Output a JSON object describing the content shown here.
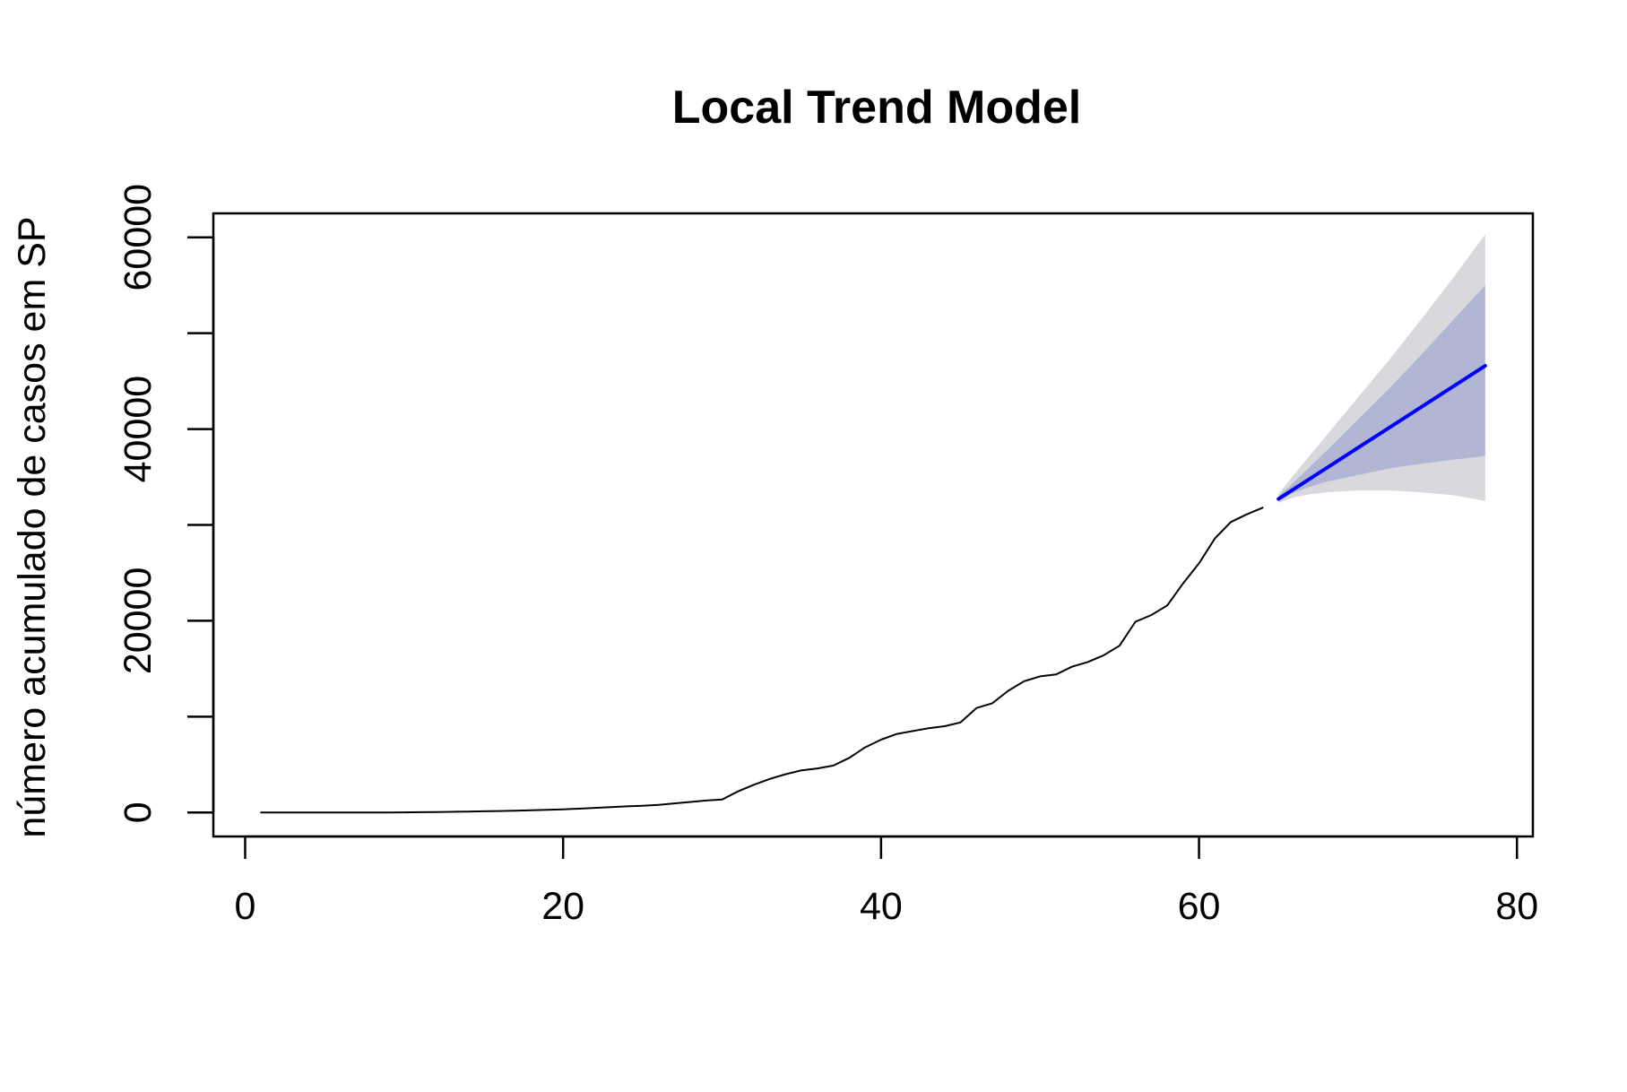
{
  "chart_data": {
    "type": "line",
    "title": "Local Trend Model",
    "xlabel": "",
    "ylabel": "número acumulado de casos em SP",
    "xlim": [
      -2,
      81
    ],
    "ylim": [
      -2500,
      62500
    ],
    "x_ticks": [
      0,
      20,
      40,
      60,
      80
    ],
    "x_tick_labels": [
      "0",
      "20",
      "40",
      "60",
      "80"
    ],
    "y_ticks": [
      0,
      10000,
      20000,
      30000,
      40000,
      50000,
      60000
    ],
    "y_tick_labels": [
      "0",
      "",
      "20000",
      "",
      "40000",
      "",
      "60000"
    ],
    "grid": false,
    "series": [
      {
        "kind": "observed",
        "color": "#000000",
        "x": [
          1,
          2,
          3,
          4,
          5,
          6,
          7,
          8,
          9,
          10,
          11,
          12,
          13,
          14,
          15,
          16,
          17,
          18,
          19,
          20,
          21,
          22,
          23,
          24,
          25,
          26,
          27,
          28,
          29,
          30,
          31,
          32,
          33,
          34,
          35,
          36,
          37,
          38,
          39,
          40,
          41,
          42,
          43,
          44,
          45,
          46,
          47,
          48,
          49,
          50,
          51,
          52,
          53,
          54,
          55,
          56,
          57,
          58,
          59,
          60,
          61,
          62,
          63,
          64
        ],
        "y": [
          0,
          0,
          0,
          0,
          0,
          0,
          0,
          0,
          10,
          20,
          30,
          50,
          70,
          100,
          130,
          160,
          190,
          230,
          280,
          330,
          400,
          480,
          560,
          640,
          710,
          800,
          950,
          1100,
          1250,
          1350,
          2200,
          2900,
          3500,
          4000,
          4400,
          4600,
          4900,
          5700,
          6800,
          7600,
          8200,
          8500,
          8800,
          9000,
          9400,
          10900,
          11400,
          12700,
          13700,
          14200,
          14400,
          15200,
          15700,
          16400,
          17400,
          19900,
          20600,
          21600,
          23900,
          26000,
          28600,
          30300,
          31100,
          31800
        ]
      },
      {
        "kind": "forecast",
        "color": "#0000ff",
        "x": [
          65,
          78
        ],
        "y": [
          32700,
          46600
        ]
      }
    ],
    "intervals": [
      {
        "level": "outer",
        "color": "#d9d9dd",
        "x": [
          65,
          66,
          67,
          68,
          70,
          72,
          74,
          76,
          78
        ],
        "lower": [
          32300,
          32900,
          33200,
          33400,
          33600,
          33600,
          33400,
          33100,
          32500
        ],
        "upper": [
          33200,
          35300,
          37300,
          39300,
          43300,
          47300,
          51500,
          55800,
          60300
        ]
      },
      {
        "level": "inner",
        "color": "#b0b6d4",
        "x": [
          65,
          66,
          67,
          68,
          70,
          72,
          74,
          76,
          78
        ],
        "lower": [
          32500,
          33400,
          34000,
          34500,
          35200,
          35900,
          36400,
          36800,
          37200
        ],
        "upper": [
          33000,
          34500,
          36100,
          37700,
          41000,
          44300,
          47800,
          51400,
          55000
        ]
      }
    ]
  }
}
